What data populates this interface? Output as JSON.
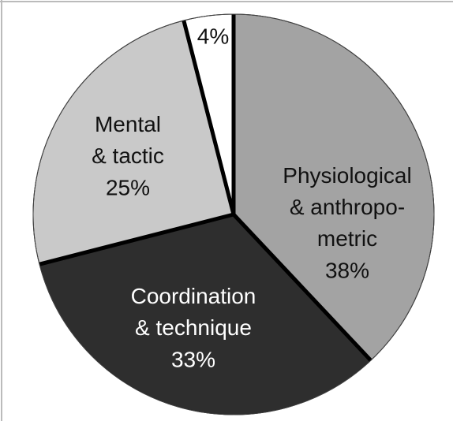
{
  "chart_data": {
    "type": "pie",
    "categories": [
      "Physiological\n& anthropo-\nmetric",
      "Coordination\n& technique",
      "Mental\n& tactic",
      null
    ],
    "values": [
      38,
      33,
      25,
      4
    ],
    "value_labels": [
      "38%",
      "33%",
      "25%",
      "4%"
    ],
    "colors": [
      "#a3a3a3",
      "#2e2e2e",
      "#c9c9c9",
      "#ffffff"
    ]
  }
}
